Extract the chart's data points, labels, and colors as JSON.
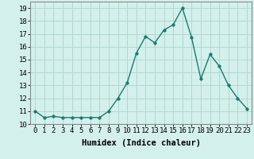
{
  "x": [
    0,
    1,
    2,
    3,
    4,
    5,
    6,
    7,
    8,
    9,
    10,
    11,
    12,
    13,
    14,
    15,
    16,
    17,
    18,
    19,
    20,
    21,
    22,
    23
  ],
  "y": [
    11.0,
    10.5,
    10.6,
    10.5,
    10.5,
    10.5,
    10.5,
    10.5,
    11.0,
    12.0,
    13.2,
    15.5,
    16.8,
    16.3,
    17.3,
    17.7,
    19.0,
    16.7,
    13.5,
    15.4,
    14.5,
    13.0,
    12.0,
    11.2
  ],
  "line_color": "#1a7a6e",
  "marker": "o",
  "marker_size": 2.5,
  "bg_color": "#d4f0ec",
  "grid_color": "#b0d8d2",
  "xlabel": "Humidex (Indice chaleur)",
  "xlim": [
    -0.5,
    23.5
  ],
  "ylim": [
    10,
    19.5
  ],
  "yticks": [
    10,
    11,
    12,
    13,
    14,
    15,
    16,
    17,
    18,
    19
  ],
  "xticks": [
    0,
    1,
    2,
    3,
    4,
    5,
    6,
    7,
    8,
    9,
    10,
    11,
    12,
    13,
    14,
    15,
    16,
    17,
    18,
    19,
    20,
    21,
    22,
    23
  ],
  "xtick_labels": [
    "0",
    "1",
    "2",
    "3",
    "4",
    "5",
    "6",
    "7",
    "8",
    "9",
    "10",
    "11",
    "12",
    "13",
    "14",
    "15",
    "16",
    "17",
    "18",
    "19",
    "20",
    "21",
    "22",
    "23"
  ],
  "font_size": 6.5,
  "xlabel_fontsize": 7.5,
  "linewidth": 1.0
}
